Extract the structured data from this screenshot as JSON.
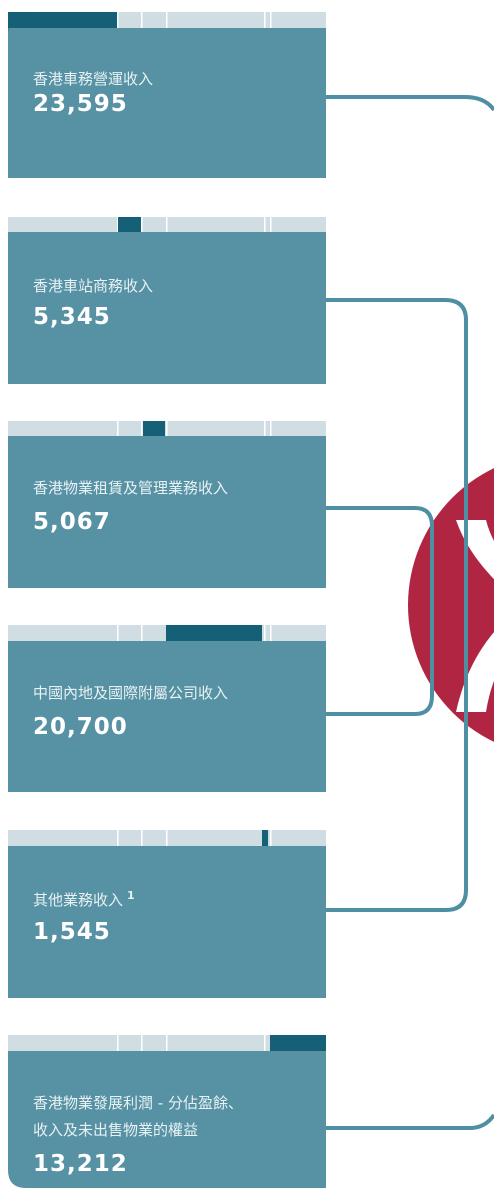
{
  "items": [
    {
      "label": [
        "香港車務營運收入"
      ],
      "value": "23,595"
    },
    {
      "label": [
        "香港車站商務收入"
      ],
      "value": "5,345"
    },
    {
      "label": [
        "香港物業租賃及管理業務收入"
      ],
      "value": "5,067"
    },
    {
      "label": [
        "中國內地及國際附屬公司收入"
      ],
      "value": "20,700"
    },
    {
      "label": [
        "其他業務收入"
      ],
      "note": "1",
      "value": "1,545"
    },
    {
      "label": [
        "香港物業發展利潤 - 分佔盈餘、",
        "收入及未出售物業的權益"
      ],
      "value": "13,212"
    }
  ]
}
